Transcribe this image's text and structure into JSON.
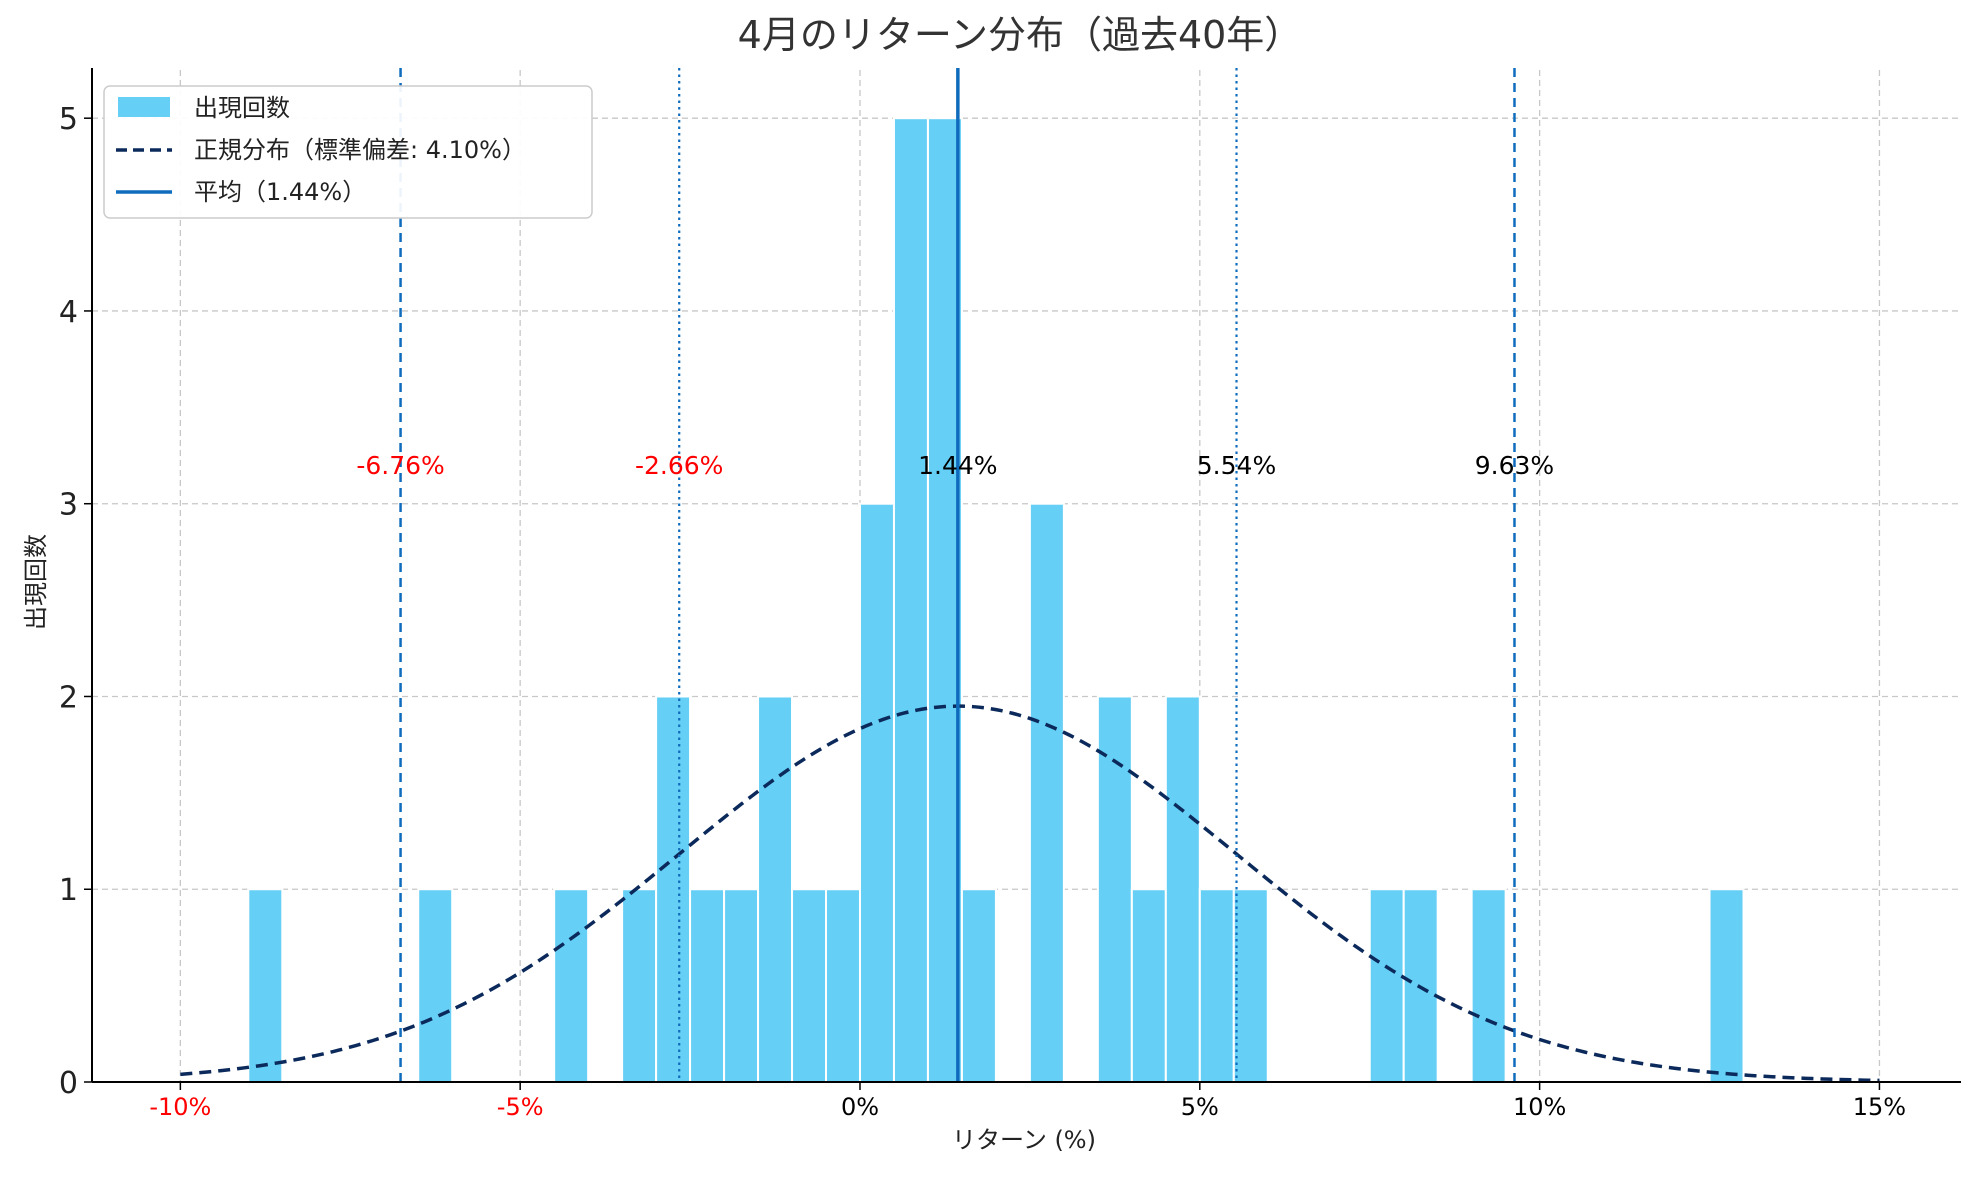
{
  "chart_data": {
    "type": "bar",
    "title": "4月のリターン分布（過去40年）",
    "xlabel": "リターン (%)",
    "ylabel": "出現回数",
    "xlim": [
      -11.3,
      16.2
    ],
    "ylim": [
      0,
      5.25
    ],
    "grid": true,
    "legend_placement": "top-left",
    "x_ticks": [
      {
        "value": -10,
        "label": "-10%"
      },
      {
        "value": -5,
        "label": "-5%"
      },
      {
        "value": 0,
        "label": "0%"
      },
      {
        "value": 5,
        "label": "5%"
      },
      {
        "value": 10,
        "label": "10%"
      },
      {
        "value": 15,
        "label": "15%"
      }
    ],
    "y_ticks": [
      0,
      1,
      2,
      3,
      4,
      5
    ],
    "negative_tick_color": "#ff0000",
    "positive_tick_color": "#000000",
    "series": [
      {
        "name": "出現回数",
        "kind": "histogram",
        "color": "#66cff5",
        "bin_width": 0.5,
        "bins": [
          {
            "start": -9.0,
            "count": 1
          },
          {
            "start": -6.5,
            "count": 1
          },
          {
            "start": -4.5,
            "count": 1
          },
          {
            "start": -3.5,
            "count": 1
          },
          {
            "start": -3.0,
            "count": 2
          },
          {
            "start": -2.5,
            "count": 1
          },
          {
            "start": -2.0,
            "count": 1
          },
          {
            "start": -1.5,
            "count": 2
          },
          {
            "start": -1.0,
            "count": 1
          },
          {
            "start": -0.5,
            "count": 1
          },
          {
            "start": 0.0,
            "count": 3
          },
          {
            "start": 0.5,
            "count": 5
          },
          {
            "start": 1.0,
            "count": 5
          },
          {
            "start": 1.5,
            "count": 1
          },
          {
            "start": 2.5,
            "count": 3
          },
          {
            "start": 3.5,
            "count": 2
          },
          {
            "start": 4.0,
            "count": 1
          },
          {
            "start": 4.5,
            "count": 2
          },
          {
            "start": 5.0,
            "count": 1
          },
          {
            "start": 5.5,
            "count": 1
          },
          {
            "start": 7.5,
            "count": 1
          },
          {
            "start": 8.0,
            "count": 1
          },
          {
            "start": 9.0,
            "count": 1
          },
          {
            "start": 12.5,
            "count": 1
          }
        ]
      },
      {
        "name": "正規分布（標準偏差: 4.10%）",
        "kind": "normal_curve",
        "color": "#0b2a5b",
        "mean": 1.44,
        "std": 4.1,
        "peak": 1.95,
        "x_range": [
          -10,
          15
        ]
      },
      {
        "name": "平均（1.44%）",
        "kind": "vline",
        "color": "#0f6cbd",
        "x": 1.44
      }
    ],
    "reference_lines": [
      {
        "x": -6.76,
        "style": "dashed",
        "label": "-6.76%",
        "label_color": "#ff0000"
      },
      {
        "x": -2.66,
        "style": "dotted",
        "label": "-2.66%",
        "label_color": "#ff0000"
      },
      {
        "x": 1.44,
        "style": "solid",
        "label": "1.44%",
        "label_color": "#000000"
      },
      {
        "x": 5.54,
        "style": "dotted",
        "label": "5.54%",
        "label_color": "#000000"
      },
      {
        "x": 9.63,
        "style": "dashed",
        "label": "9.63%",
        "label_color": "#000000"
      }
    ],
    "reference_label_y": 3.2
  }
}
